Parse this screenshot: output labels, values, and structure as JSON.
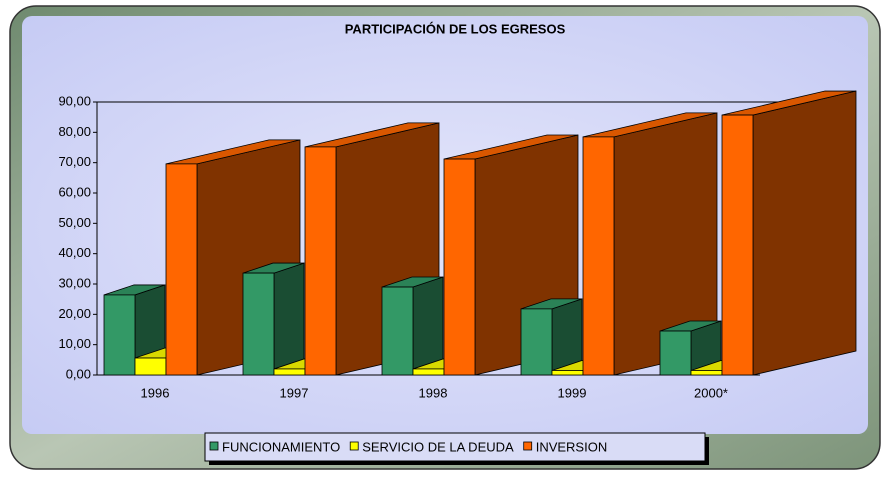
{
  "chart_data": {
    "type": "bar3d",
    "title": "PARTICIPACIÓN DE LOS EGRESOS",
    "categories": [
      "1996",
      "1997",
      "1998",
      "1999",
      "2000*"
    ],
    "series": [
      {
        "name": "FUNCIONAMIENTO",
        "color": "#339966",
        "values": [
          26.4,
          33.6,
          29.0,
          21.8,
          14.5
        ]
      },
      {
        "name": "SERVICIO DE LA DEUDA",
        "color": "#ffff00",
        "values": [
          5.6,
          2.0,
          2.0,
          1.5,
          1.5
        ]
      },
      {
        "name": "INVERSION",
        "color": "#ff6600",
        "values": [
          69.6,
          75.2,
          71.2,
          78.5,
          85.7
        ]
      }
    ],
    "ylim": [
      0,
      90
    ],
    "yticks": [
      {
        "value": 0,
        "label": "0,00"
      },
      {
        "value": 10,
        "label": "10,00"
      },
      {
        "value": 20,
        "label": "20,00"
      },
      {
        "value": 30,
        "label": "30,00"
      },
      {
        "value": 40,
        "label": "40,00"
      },
      {
        "value": 50,
        "label": "50,00"
      },
      {
        "value": 60,
        "label": "60,00"
      },
      {
        "value": 70,
        "label": "70,00"
      },
      {
        "value": 80,
        "label": "80,00"
      },
      {
        "value": 90,
        "label": "90,00"
      }
    ],
    "legend": "bottom"
  }
}
